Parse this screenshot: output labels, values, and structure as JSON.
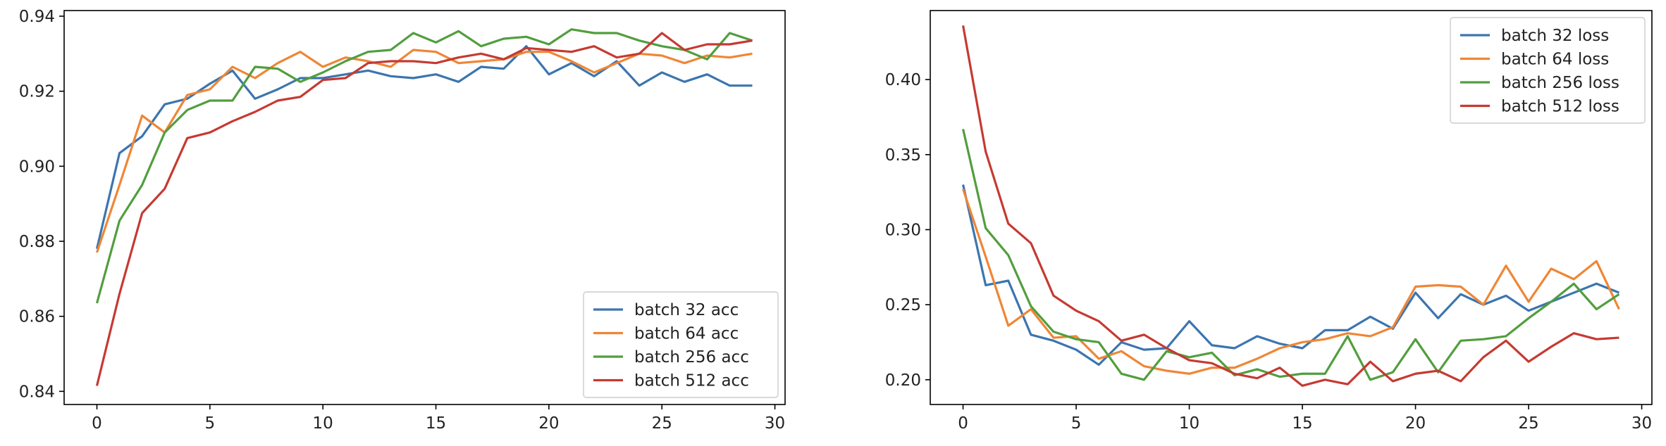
{
  "chart_data": [
    {
      "type": "line",
      "title": "",
      "xlabel": "",
      "ylabel": "",
      "xlim": [
        -1.45,
        30.45
      ],
      "ylim": [
        0.8365,
        0.9415
      ],
      "xticks": [
        0,
        5,
        10,
        15,
        20,
        25,
        30
      ],
      "xtick_labels": [
        "0",
        "5",
        "10",
        "15",
        "20",
        "25",
        "30"
      ],
      "yticks": [
        0.84,
        0.86,
        0.88,
        0.9,
        0.92,
        0.94
      ],
      "ytick_labels": [
        "0.84",
        "0.86",
        "0.88",
        "0.90",
        "0.92",
        "0.94"
      ],
      "grid": false,
      "legend_position": "lower-right",
      "series": [
        {
          "name": "batch 32 acc",
          "color": "#3b75af",
          "values": [
            0.878,
            0.9035,
            0.908,
            0.9165,
            0.918,
            0.922,
            0.9255,
            0.918,
            0.9205,
            0.9235,
            0.9235,
            0.9245,
            0.9255,
            0.924,
            0.9235,
            0.9245,
            0.9225,
            0.9265,
            0.926,
            0.932,
            0.9245,
            0.9275,
            0.924,
            0.928,
            0.9215,
            0.925,
            0.9225,
            0.9245,
            0.9215,
            0.9215
          ]
        },
        {
          "name": "batch 64 acc",
          "color": "#ef8636",
          "values": [
            0.877,
            0.895,
            0.9135,
            0.909,
            0.919,
            0.9205,
            0.9265,
            0.9235,
            0.9275,
            0.9305,
            0.9265,
            0.929,
            0.928,
            0.9265,
            0.931,
            0.9305,
            0.9275,
            0.928,
            0.9285,
            0.9305,
            0.9305,
            0.928,
            0.925,
            0.9275,
            0.93,
            0.9295,
            0.9275,
            0.9295,
            0.929,
            0.93
          ]
        },
        {
          "name": "batch 256 acc",
          "color": "#519e3e",
          "values": [
            0.8635,
            0.8855,
            0.895,
            0.909,
            0.915,
            0.9175,
            0.9175,
            0.9265,
            0.926,
            0.9225,
            0.925,
            0.928,
            0.9305,
            0.931,
            0.9355,
            0.933,
            0.936,
            0.932,
            0.934,
            0.9345,
            0.9325,
            0.9365,
            0.9355,
            0.9355,
            0.9335,
            0.932,
            0.931,
            0.9285,
            0.9355,
            0.9335
          ]
        },
        {
          "name": "batch 512 acc",
          "color": "#c53a32",
          "values": [
            0.8415,
            0.866,
            0.8875,
            0.894,
            0.9075,
            0.909,
            0.912,
            0.9145,
            0.9175,
            0.9185,
            0.923,
            0.9235,
            0.9275,
            0.928,
            0.928,
            0.9275,
            0.929,
            0.93,
            0.9285,
            0.9315,
            0.931,
            0.9305,
            0.932,
            0.929,
            0.93,
            0.9355,
            0.931,
            0.9325,
            0.9325,
            0.9335
          ]
        }
      ]
    },
    {
      "type": "line",
      "title": "",
      "xlabel": "",
      "ylabel": "",
      "xlim": [
        -1.45,
        30.45
      ],
      "ylim": [
        0.1835,
        0.446
      ],
      "xticks": [
        0,
        5,
        10,
        15,
        20,
        25,
        30
      ],
      "xtick_labels": [
        "0",
        "5",
        "10",
        "15",
        "20",
        "25",
        "30"
      ],
      "yticks": [
        0.2,
        0.25,
        0.3,
        0.35,
        0.4
      ],
      "ytick_labels": [
        "0.20",
        "0.25",
        "0.30",
        "0.35",
        "0.40"
      ],
      "grid": false,
      "legend_position": "upper-right",
      "series": [
        {
          "name": "batch 32 loss",
          "color": "#3b75af",
          "values": [
            0.33,
            0.263,
            0.266,
            0.23,
            0.226,
            0.22,
            0.21,
            0.225,
            0.22,
            0.221,
            0.239,
            0.223,
            0.221,
            0.229,
            0.224,
            0.221,
            0.233,
            0.233,
            0.242,
            0.234,
            0.258,
            0.241,
            0.257,
            0.25,
            0.256,
            0.246,
            0.252,
            0.258,
            0.264,
            0.258
          ]
        },
        {
          "name": "batch 64 loss",
          "color": "#ef8636",
          "values": [
            0.327,
            0.282,
            0.236,
            0.247,
            0.228,
            0.229,
            0.214,
            0.219,
            0.209,
            0.206,
            0.204,
            0.208,
            0.208,
            0.214,
            0.221,
            0.225,
            0.227,
            0.231,
            0.229,
            0.235,
            0.262,
            0.263,
            0.262,
            0.25,
            0.276,
            0.252,
            0.274,
            0.267,
            0.279,
            0.247
          ]
        },
        {
          "name": "batch 256 loss",
          "color": "#519e3e",
          "values": [
            0.367,
            0.301,
            0.283,
            0.249,
            0.232,
            0.227,
            0.225,
            0.204,
            0.2,
            0.219,
            0.215,
            0.218,
            0.203,
            0.207,
            0.202,
            0.204,
            0.204,
            0.229,
            0.2,
            0.205,
            0.227,
            0.205,
            0.226,
            0.227,
            0.229,
            0.241,
            0.252,
            0.264,
            0.247,
            0.257
          ]
        },
        {
          "name": "batch 512 loss",
          "color": "#c53a32",
          "values": [
            0.436,
            0.352,
            0.304,
            0.291,
            0.256,
            0.246,
            0.239,
            0.226,
            0.23,
            0.221,
            0.213,
            0.211,
            0.204,
            0.201,
            0.208,
            0.196,
            0.2,
            0.197,
            0.212,
            0.199,
            0.204,
            0.206,
            0.199,
            0.215,
            0.226,
            0.212,
            0.222,
            0.231,
            0.227,
            0.228
          ]
        }
      ]
    }
  ]
}
